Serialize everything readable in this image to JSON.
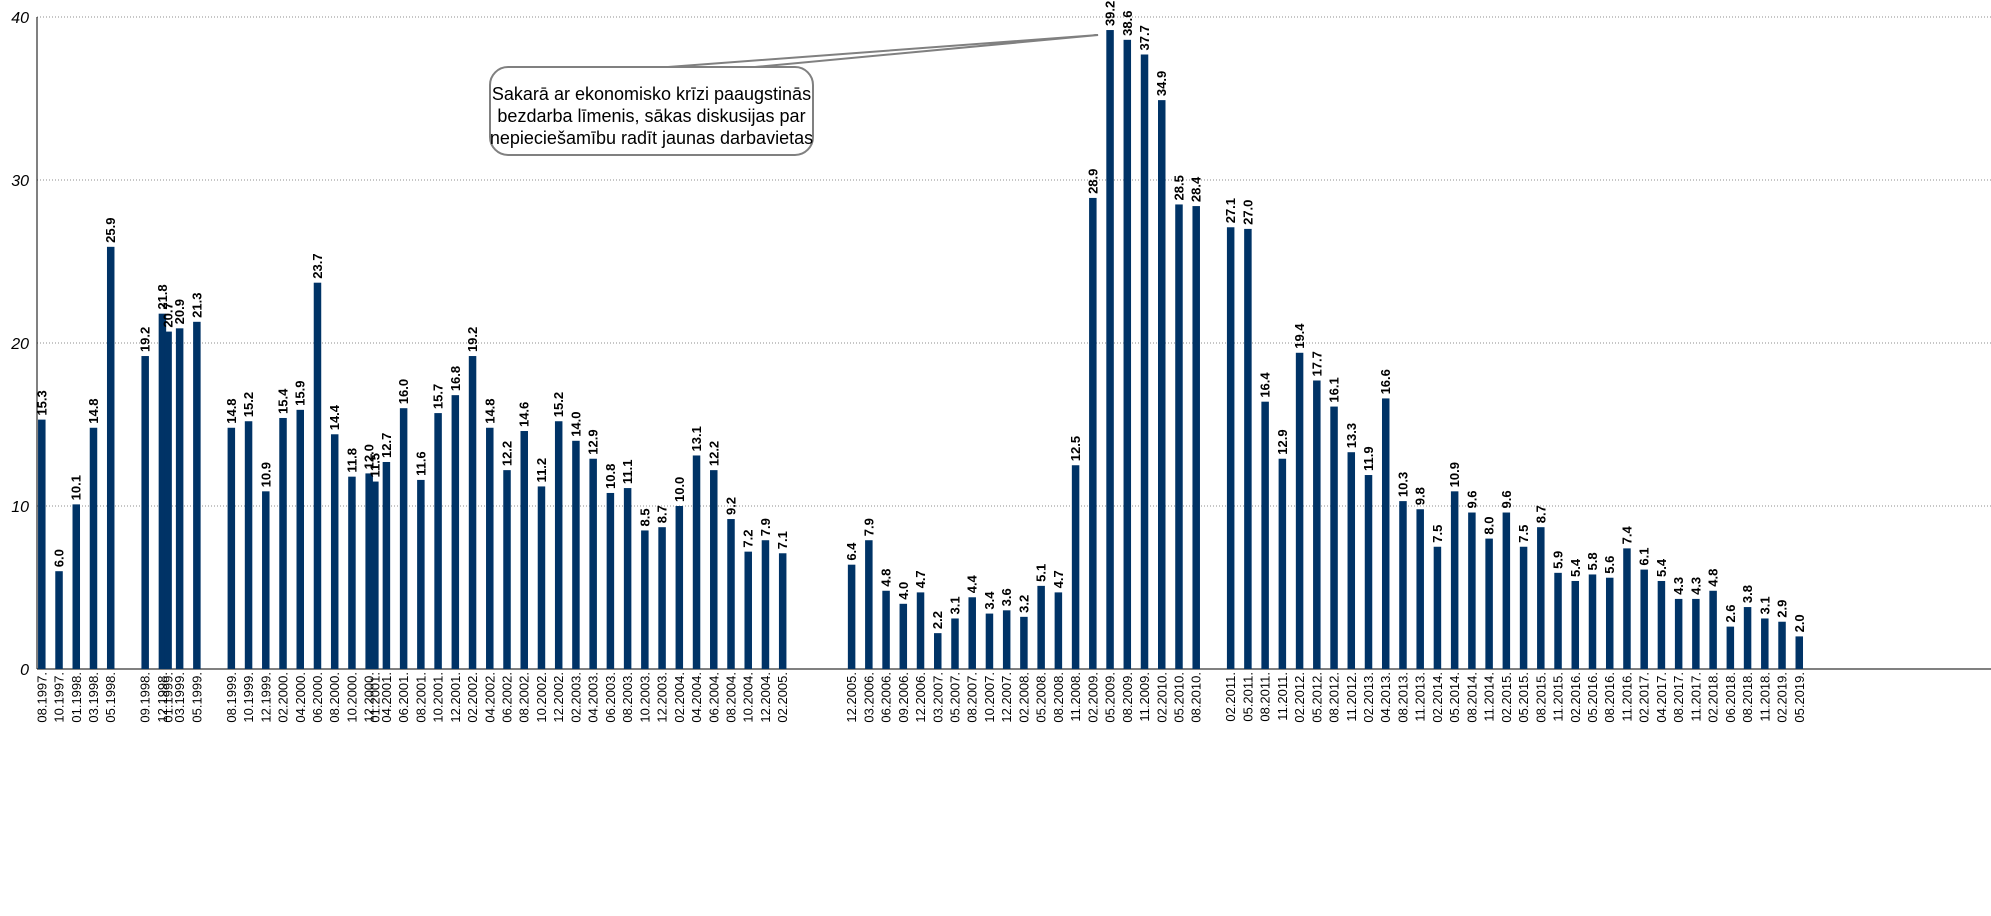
{
  "chart_data": {
    "type": "bar",
    "ylim": [
      0,
      40
    ],
    "yticks": [
      0,
      10,
      20,
      30,
      40
    ],
    "grid": true,
    "bar_color": "#003366",
    "categories": [
      "08.1997.",
      "10.1997.",
      "01.1998.",
      "03.1998.",
      "05.1998.",
      "09.1998.",
      "12.1998.",
      "01.1999.",
      "03.1999.",
      "05.1999.",
      "08.1999.",
      "10.1999.",
      "12.1999.",
      "02.2000.",
      "04.2000.",
      "06.2000.",
      "08.2000.",
      "10.2000.",
      "12.2000.",
      "01.2001.",
      "04.2001.",
      "06.2001.",
      "08.2001.",
      "10.2001.",
      "12.2001.",
      "02.2002.",
      "04.2002.",
      "06.2002.",
      "08.2002.",
      "10.2002.",
      "12.2002.",
      "02.2003.",
      "04.2003.",
      "06.2003.",
      "08.2003.",
      "10.2003.",
      "12.2003.",
      "02.2004.",
      "04.2004.",
      "06.2004.",
      "08.2004.",
      "10.2004.",
      "12.2004.",
      "02.2005.",
      "12.2005.",
      "03.2006.",
      "06.2006.",
      "09.2006.",
      "12.2006.",
      "03.2007.",
      "05.2007.",
      "08.2007.",
      "10.2007.",
      "12.2007.",
      "02.2008.",
      "05.2008.",
      "08.2008.",
      "11.2008.",
      "02.2009.",
      "05.2009.",
      "08.2009.",
      "11.2009.",
      "02.2010.",
      "05.2010.",
      "08.2010.",
      "02.2011.",
      "05.2011.",
      "08.2011.",
      "11.2011.",
      "02.2012.",
      "05.2012.",
      "08.2012.",
      "11.2012.",
      "02.2013.",
      "04.2013.",
      "08.2013.",
      "11.2013.",
      "02.2014.",
      "05.2014.",
      "08.2014.",
      "11.2014.",
      "02.2015.",
      "05.2015.",
      "08.2015.",
      "11.2015.",
      "02.2016.",
      "05.2016.",
      "08.2016.",
      "11.2016.",
      "02.2017.",
      "04.2017.",
      "08.2017.",
      "11.2017.",
      "02.2018.",
      "06.2018.",
      "08.2018.",
      "11.2018.",
      "02.2019.",
      "05.2019."
    ],
    "values": [
      15.3,
      6.0,
      10.1,
      14.8,
      25.9,
      19.2,
      21.8,
      20.7,
      20.9,
      21.3,
      14.8,
      15.2,
      10.9,
      15.4,
      15.9,
      23.7,
      14.4,
      11.8,
      12.0,
      11.5,
      12.7,
      16.0,
      11.6,
      15.7,
      16.8,
      19.2,
      14.8,
      12.2,
      14.6,
      11.2,
      15.2,
      14.0,
      12.9,
      10.8,
      11.1,
      8.5,
      8.7,
      10.0,
      13.1,
      12.2,
      9.2,
      7.2,
      7.9,
      7.1,
      6.4,
      7.9,
      4.8,
      4.0,
      4.7,
      2.2,
      3.1,
      4.4,
      3.4,
      3.6,
      3.2,
      5.1,
      4.7,
      12.5,
      28.9,
      39.2,
      38.6,
      37.7,
      34.9,
      28.5,
      28.4,
      27.1,
      27.0,
      16.4,
      12.9,
      19.4,
      17.7,
      16.1,
      13.3,
      11.9,
      16.6,
      10.3,
      9.8,
      7.5,
      10.9,
      9.6,
      8.0,
      9.6,
      7.5,
      8.7,
      5.9,
      5.4,
      5.8,
      5.6,
      7.4,
      6.1,
      5.4,
      4.3,
      4.3,
      4.8,
      2.6,
      3.8,
      3.1,
      2.9,
      2.0
    ],
    "annotation": {
      "lines": [
        "Sakarā ar ekonomisko krīzi paaugstinās",
        "bezdarba līmenis, sākas diskusijas par",
        "nepieciešamību radīt jaunas darbavietas"
      ],
      "points_to": "05.2009."
    }
  }
}
